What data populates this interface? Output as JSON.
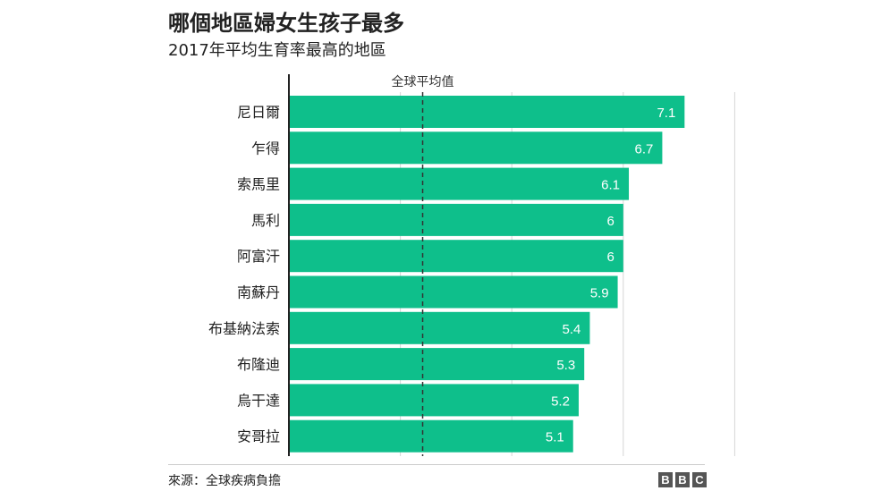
{
  "title": "哪個地區婦女生孩子最多",
  "subtitle": "2017年平均生育率最高的地區",
  "source": "來源：全球疾病負擔",
  "logo": "BBC",
  "colors": {
    "bar": "#0ebf8b",
    "grid": "#d6d6d6",
    "axis": "#222222",
    "reference_line": "#333333"
  },
  "chart_data": {
    "type": "bar",
    "orientation": "horizontal",
    "categories": [
      "尼日爾",
      "乍得",
      "索馬里",
      "馬利",
      "阿富汗",
      "南蘇丹",
      "布基納法索",
      "布隆迪",
      "烏干達",
      "安哥拉"
    ],
    "values": [
      7.1,
      6.7,
      6.1,
      6,
      6,
      5.9,
      5.4,
      5.3,
      5.2,
      5.1
    ],
    "value_labels": [
      "7.1",
      "6.7",
      "6.1",
      "6",
      "6",
      "5.9",
      "5.4",
      "5.3",
      "5.2",
      "5.1"
    ],
    "xlim": [
      0,
      8
    ],
    "grid": true,
    "reference_line": {
      "label": "全球平均值",
      "value": 2.4
    }
  }
}
